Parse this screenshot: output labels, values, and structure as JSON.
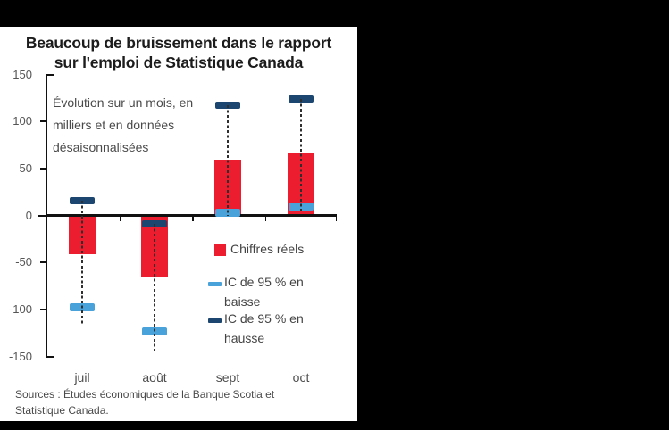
{
  "window": {
    "background": "#000000",
    "panel_background": "#FFFFFF"
  },
  "chart_data": {
    "type": "bar",
    "title_lines": [
      "Beaucoup de bruissement dans le rapport",
      "sur l'emploi de Statistique Canada"
    ],
    "annotation_lines": [
      "Évolution sur un mois, en",
      "milliers et en données",
      "désaisonnalisées"
    ],
    "categories": [
      "juil",
      "août",
      "sept",
      "oct"
    ],
    "series": [
      {
        "name": "Chiffres réels",
        "role": "bar",
        "color": "#EB1D2E",
        "values": [
          -41,
          -66,
          60,
          67
        ]
      },
      {
        "name": "IC de 95 % en baisse",
        "role": "ci-cap-low",
        "color": "#49A2DA",
        "values": [
          -98,
          -123,
          3,
          10
        ]
      },
      {
        "name": "IC de 95 % en hausse",
        "role": "ci-cap-high",
        "color": "#1C4670",
        "values": [
          16,
          -9,
          117,
          124
        ]
      }
    ],
    "whisker_bottoms": [
      -115,
      -144,
      0,
      2
    ],
    "ylim": [
      -150,
      150
    ],
    "yticks": [
      150,
      100,
      50,
      0,
      -50,
      -100,
      -150
    ],
    "grid": "off",
    "legend_position": "center-right-inside",
    "legend": [
      {
        "swatch": "square",
        "color": "#EB1D2E",
        "lines": [
          "Chiffres réels"
        ]
      },
      {
        "swatch": "dash",
        "color": "#49A2DA",
        "lines": [
          "IC de 95 % en",
          "baisse"
        ]
      },
      {
        "swatch": "dash",
        "color": "#1C4670",
        "lines": [
          "IC de 95 % en",
          "hausse"
        ]
      }
    ],
    "source_lines": [
      "Sources : Études économiques de la Banque Scotia et",
      "Statistique Canada."
    ]
  }
}
